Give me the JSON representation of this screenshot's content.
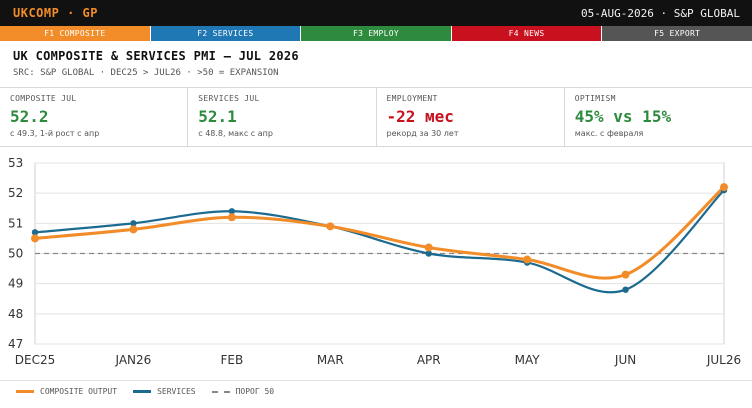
{
  "topbar": {
    "ticker": "UKCOMP · GP",
    "date": "05-AUG-2026 · S&P GLOBAL"
  },
  "fkeys": [
    {
      "label": "F1 COMPOSITE",
      "color": "#f28c28"
    },
    {
      "label": "F2 SERVICES",
      "color": "#1f77b4"
    },
    {
      "label": "F3 EMPLOY",
      "color": "#2e8b3e"
    },
    {
      "label": "F4 NEWS",
      "color": "#c8101e"
    },
    {
      "label": "F5 EXPORT",
      "color": "#555555"
    }
  ],
  "header": {
    "title": "UK COMPOSITE & SERVICES PMI — JUL 2026",
    "subtitle": "SRC: S&P GLOBAL · DEC25 > JUL26 · >50 = EXPANSION"
  },
  "kpis": [
    {
      "label": "COMPOSITE JUL",
      "value": "52.2",
      "color": "#2e8b3e",
      "note": "с 49.3, 1-й рост с апр"
    },
    {
      "label": "SERVICES JUL",
      "value": "52.1",
      "color": "#2e8b3e",
      "note": "с 48.8, макс с апр"
    },
    {
      "label": "EMPLOYMENT",
      "value": "-22 мес",
      "color": "#c8101e",
      "note": "рекорд за 30 лет"
    },
    {
      "label": "OPTIMISM",
      "value": "45% vs 15%",
      "color": "#2e8b3e",
      "note": "макс. с февраля"
    }
  ],
  "chart_data": {
    "type": "line",
    "categories": [
      "DEC25",
      "JAN26",
      "FEB",
      "MAR",
      "APR",
      "MAY",
      "JUN",
      "JUL26"
    ],
    "series": [
      {
        "name": "COMPOSITE OUTPUT",
        "color": "#f28c28",
        "values": [
          50.5,
          50.8,
          51.2,
          50.9,
          50.2,
          49.8,
          49.3,
          52.2
        ]
      },
      {
        "name": "SERVICES",
        "color": "#1b6a8f",
        "values": [
          50.7,
          51.0,
          51.4,
          50.9,
          50.0,
          49.7,
          48.8,
          52.1
        ]
      }
    ],
    "threshold": {
      "name": "ПОРОГ 50",
      "value": 50,
      "color": "#888888"
    },
    "ylim": [
      47,
      53
    ],
    "yticks": [
      47,
      48,
      49,
      50,
      51,
      52,
      53
    ],
    "grid": "horizontal"
  }
}
